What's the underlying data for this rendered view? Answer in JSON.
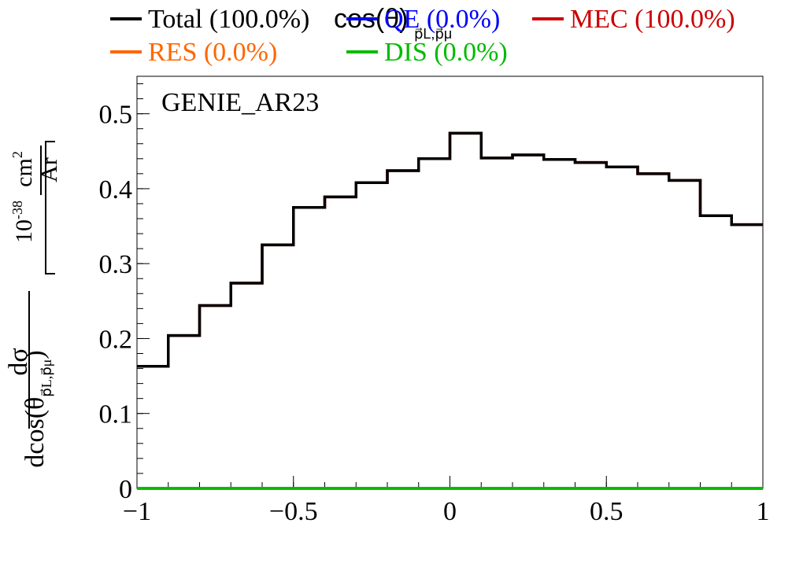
{
  "chart_data": {
    "type": "line",
    "style": "step-histogram",
    "x_edges": [
      -1.0,
      -0.9,
      -0.8,
      -0.7,
      -0.6,
      -0.5,
      -0.4,
      -0.3,
      -0.2,
      -0.1,
      0.0,
      0.1,
      0.2,
      0.3,
      0.4,
      0.5,
      0.6,
      0.7,
      0.8,
      0.9,
      1.0
    ],
    "series": [
      {
        "name": "Total (100.0%)",
        "color": "#000000",
        "values": [
          0.163,
          0.204,
          0.244,
          0.274,
          0.325,
          0.375,
          0.389,
          0.408,
          0.424,
          0.44,
          0.474,
          0.441,
          0.445,
          0.439,
          0.435,
          0.429,
          0.42,
          0.411,
          0.364,
          0.352
        ]
      },
      {
        "name": "QE (0.0%)",
        "color": "#0000ff",
        "values": [
          0,
          0,
          0,
          0,
          0,
          0,
          0,
          0,
          0,
          0,
          0,
          0,
          0,
          0,
          0,
          0,
          0,
          0,
          0,
          0
        ]
      },
      {
        "name": "MEC (100.0%)",
        "color": "#cc0000",
        "values": [
          0.163,
          0.204,
          0.244,
          0.274,
          0.325,
          0.375,
          0.389,
          0.408,
          0.424,
          0.44,
          0.474,
          0.441,
          0.445,
          0.439,
          0.435,
          0.429,
          0.42,
          0.411,
          0.364,
          0.352
        ]
      },
      {
        "name": "RES (0.0%)",
        "color": "#ff6600",
        "values": [
          0,
          0,
          0,
          0,
          0,
          0,
          0,
          0,
          0,
          0,
          0,
          0,
          0,
          0,
          0,
          0,
          0,
          0,
          0,
          0
        ]
      },
      {
        "name": "DIS (0.0%)",
        "color": "#00bb00",
        "values": [
          0,
          0,
          0,
          0,
          0,
          0,
          0,
          0,
          0,
          0,
          0,
          0,
          0,
          0,
          0,
          0,
          0,
          0,
          0,
          0
        ]
      }
    ],
    "title": "cos(θ)",
    "title_subscript": "p⃗L,p⃗μ",
    "annotation": "GENIE_AR23",
    "xlim": [
      -1,
      1
    ],
    "ylim": [
      0,
      0.55
    ],
    "x_ticks": [
      -1,
      -0.5,
      0,
      0.5,
      1
    ],
    "x_tick_labels": [
      "−1",
      "−0.5",
      "0",
      "0.5",
      "1"
    ],
    "y_ticks": [
      0,
      0.1,
      0.2,
      0.3,
      0.4,
      0.5
    ],
    "y_tick_labels": [
      "0",
      "0.1",
      "0.2",
      "0.3",
      "0.4",
      "0.5"
    ],
    "ylabel": {
      "numerator": "dσ",
      "denominator": "dcos(θ",
      "denominator_sub": "p⃗L,p⃗μ",
      "denominator_close": ")",
      "units_exponent": "10",
      "units_power": "-38",
      "units_numerator": "cm",
      "units_numerator_power": "2",
      "units_denominator": "Ar"
    },
    "xlabel": "",
    "legend_position": "top",
    "grid": false
  }
}
